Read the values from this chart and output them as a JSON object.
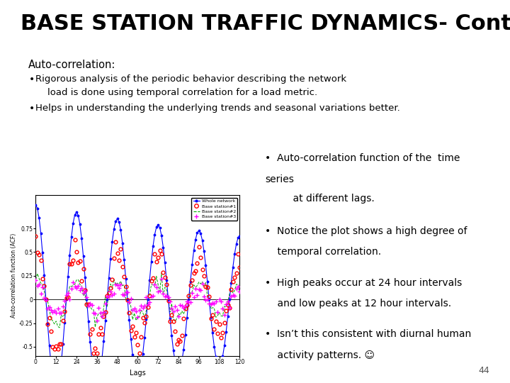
{
  "title": "BASE STATION TRAFFIC DYNAMICS- Contd.",
  "title_fontsize": 22,
  "bg_color": "#ffffff",
  "section_label": "Auto-correlation:",
  "bullet1_line1": "Rigorous analysis of the periodic behavior describing the network",
  "bullet1_line2": "    load is done using temporal correlation for a load metric.",
  "bullet2": "Helps in understanding the underlying trends and seasonal variations better.",
  "right_bullet1_line1": "•  Auto-correlation function of the  time",
  "right_bullet1_line2": "series",
  "right_bullet1_line3": "    at different lags.",
  "right_bullet2_line1": "•  Notice the plot shows a high degree of",
  "right_bullet2_line2": "    temporal correlation.",
  "right_bullet3_line1": "•  High peaks occur at 24 hour intervals",
  "right_bullet3_line2": "    and low peaks at 12 hour intervals.",
  "right_bullet4_line1": "•  Isn’t this consistent with diurnal human",
  "right_bullet4_line2": "    activity patterns. ☺",
  "page_number": "44",
  "plot_legend": [
    "Whole network",
    "Base station#1",
    "Base station#2",
    "Base station#3"
  ],
  "plot_xlabel": "Lags",
  "plot_ylabel": "Auto-correlation function (ACF)",
  "plot_xticks": [
    0,
    12,
    24,
    36,
    48,
    60,
    72,
    84,
    96,
    108,
    120
  ],
  "plot_ytick_vals": [
    -0.5,
    -0.25,
    0,
    0.25,
    0.5,
    0.75
  ],
  "plot_ytick_labels": [
    "-0.5",
    "-0.25",
    "0",
    "0.25",
    "0.5",
    "0.75"
  ]
}
